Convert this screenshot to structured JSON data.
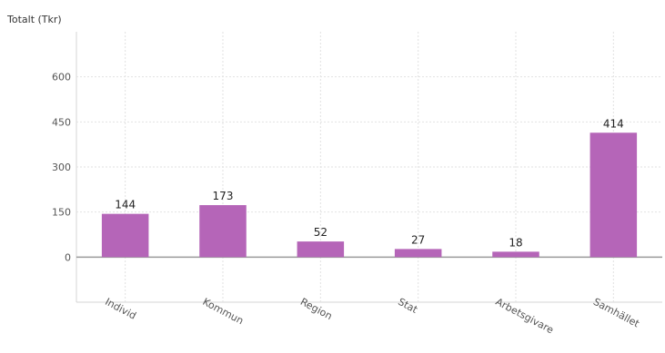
{
  "chart_data": {
    "type": "bar",
    "title": "Totalt (Tkr)",
    "categories": [
      "Individ",
      "Kommun",
      "Region",
      "Stat",
      "Arbetsgivare",
      "Samhället"
    ],
    "values": [
      144,
      173,
      52,
      27,
      18,
      414
    ],
    "data_labels": [
      "144",
      "173",
      "52",
      "27",
      "18",
      "414"
    ],
    "xlabel": "",
    "ylabel": "",
    "ylim": [
      -150,
      750
    ],
    "yticks": [
      0,
      150,
      300,
      450,
      600
    ],
    "ytick_labels": [
      "0",
      "150",
      "300",
      "450",
      "600"
    ],
    "grid": true,
    "legend": "none",
    "bar_color": "#b565b8"
  }
}
